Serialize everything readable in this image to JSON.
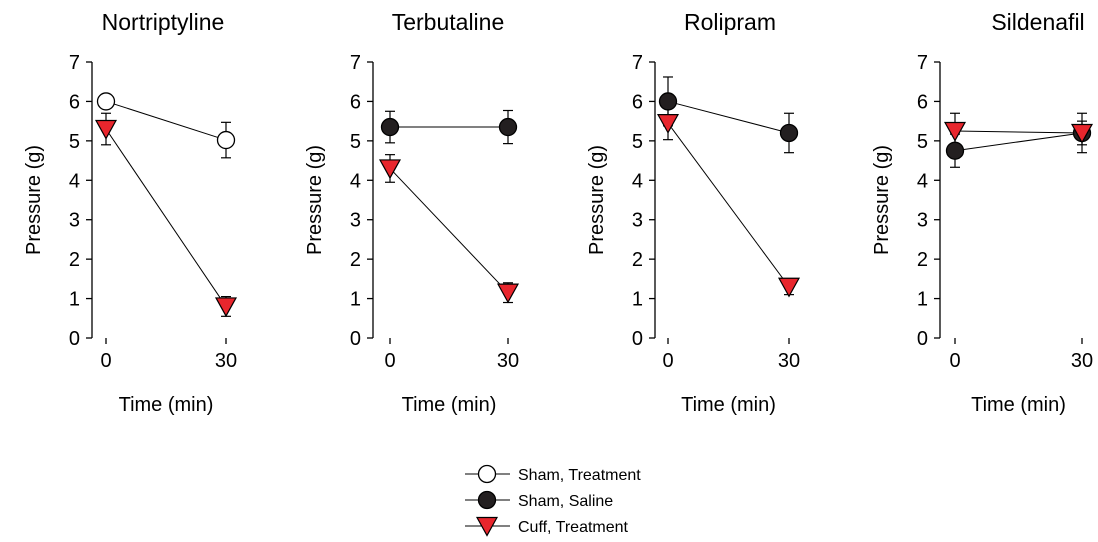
{
  "chart_data": [
    {
      "type": "line",
      "title": "Nortriptyline",
      "xlabel": "Time (min)",
      "ylabel": "Pressure (g)",
      "x_ticks": [
        "0",
        "30"
      ],
      "y_ticks": [
        "0",
        "1",
        "2",
        "3",
        "4",
        "5",
        "6",
        "7"
      ],
      "ylim": [
        0,
        7
      ],
      "series": [
        {
          "name": "Sham, Treatment",
          "x": [
            0,
            30
          ],
          "values": [
            6.0,
            5.02
          ],
          "error": [
            0,
            0.45
          ]
        },
        {
          "name": "Cuff, Treatment",
          "x": [
            0,
            30
          ],
          "values": [
            5.3,
            0.8
          ],
          "error": [
            0.4,
            0.25
          ]
        }
      ]
    },
    {
      "type": "line",
      "title": "Terbutaline",
      "xlabel": "Time (min)",
      "ylabel": "Pressure (g)",
      "x_ticks": [
        "0",
        "30"
      ],
      "y_ticks": [
        "0",
        "1",
        "2",
        "3",
        "4",
        "5",
        "6",
        "7"
      ],
      "ylim": [
        0,
        7
      ],
      "series": [
        {
          "name": "Sham, Saline",
          "x": [
            0,
            30
          ],
          "values": [
            5.35,
            5.35
          ],
          "error": [
            0.4,
            0.42
          ]
        },
        {
          "name": "Cuff, Treatment",
          "x": [
            0,
            30
          ],
          "values": [
            4.3,
            1.15
          ],
          "error": [
            0.35,
            0.25
          ]
        }
      ]
    },
    {
      "type": "line",
      "title": "Rolipram",
      "xlabel": "Time (min)",
      "ylabel": "Pressure (g)",
      "x_ticks": [
        "0",
        "30"
      ],
      "y_ticks": [
        "0",
        "1",
        "2",
        "3",
        "4",
        "5",
        "6",
        "7"
      ],
      "ylim": [
        0,
        7
      ],
      "series": [
        {
          "name": "Sham, Saline",
          "x": [
            0,
            30
          ],
          "values": [
            6.0,
            5.2
          ],
          "error": [
            0.62,
            0.5
          ]
        },
        {
          "name": "Cuff, Treatment",
          "x": [
            0,
            30
          ],
          "values": [
            5.45,
            1.3
          ],
          "error": [
            0.42,
            0.2
          ]
        }
      ]
    },
    {
      "type": "line",
      "title": "Sildenafil",
      "xlabel": "Time (min)",
      "ylabel": "Pressure (g)",
      "x_ticks": [
        "0",
        "30"
      ],
      "y_ticks": [
        "0",
        "1",
        "2",
        "3",
        "4",
        "5",
        "6",
        "7"
      ],
      "ylim": [
        0,
        7
      ],
      "series": [
        {
          "name": "Sham, Saline",
          "x": [
            0,
            30
          ],
          "values": [
            4.75,
            5.2
          ],
          "error": [
            0.42,
            0.5
          ]
        },
        {
          "name": "Cuff, Treatment",
          "x": [
            0,
            30
          ],
          "values": [
            5.25,
            5.2
          ],
          "error": [
            0.45,
            0.3
          ]
        }
      ]
    }
  ],
  "legend": {
    "placement": "bottom-center",
    "entries": [
      {
        "label": "Sham, Treatment",
        "marker": "open-circle",
        "color": "#ffffff"
      },
      {
        "label": "Sham, Saline",
        "marker": "filled-circle",
        "color": "#231f20"
      },
      {
        "label": "Cuff, Treatment",
        "marker": "down-triangle",
        "color": "#e8262d"
      }
    ]
  },
  "colors": {
    "cuff_treatment": "#e8262d",
    "sham_saline": "#231f20",
    "sham_treatment": "#ffffff",
    "stroke": "#000000"
  }
}
